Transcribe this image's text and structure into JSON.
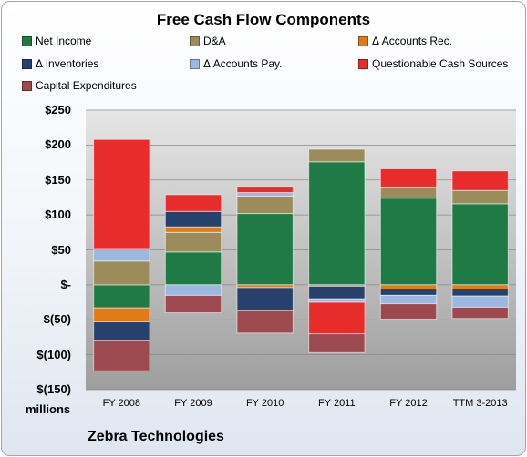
{
  "chart_data": {
    "type": "bar",
    "stacked": true,
    "title": "Free Cash Flow Components",
    "ylabel_units": "millions",
    "company": "Zebra Technologies",
    "ylim": [
      -150,
      250
    ],
    "yticks": [
      250,
      200,
      150,
      100,
      50,
      0,
      -50,
      -100,
      -150
    ],
    "ytick_labels": [
      "$250",
      "$200",
      "$150",
      "$100",
      "$50",
      "$-",
      "$(50)",
      "$(100)",
      "$(150)"
    ],
    "categories": [
      "FY 2008",
      "FY 2009",
      "FY 2010",
      "FY 2011",
      "FY 2012",
      "TTM 3-2013"
    ],
    "legend_position": "top",
    "series": [
      {
        "name": "Net Income",
        "color": "#1f7a45",
        "values": [
          -33,
          47,
          102,
          176,
          124,
          116
        ]
      },
      {
        "name": "D&A",
        "color": "#9c8c5c",
        "values": [
          34,
          28,
          25,
          18,
          16,
          19
        ]
      },
      {
        "name": "Δ Accounts Rec.",
        "color": "#e07b17",
        "values": [
          -20,
          8,
          -4,
          -2,
          -6,
          -6
        ]
      },
      {
        "name": "Δ Inventories",
        "color": "#26416b",
        "values": [
          -27,
          22,
          -33,
          -18,
          -9,
          -10
        ]
      },
      {
        "name": "Δ Accounts Pay.",
        "color": "#9db8de",
        "values": [
          18,
          -15,
          5,
          -5,
          -12,
          -16
        ]
      },
      {
        "name": "Questionable Cash Sources",
        "color": "#e82c2c",
        "values": [
          156,
          24,
          9,
          -45,
          26,
          28
        ]
      },
      {
        "name": "Capital Expenditures",
        "color": "#9c4a50",
        "values": [
          -43,
          -25,
          -32,
          -27,
          -22,
          -16
        ]
      }
    ]
  }
}
